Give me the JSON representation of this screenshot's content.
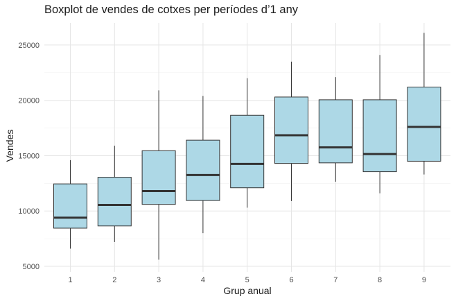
{
  "chart_data": {
    "type": "boxplot",
    "title": "Boxplot de vendes de cotxes per períodes d’1 any",
    "xlabel": "Grup anual",
    "ylabel": "Vendes",
    "categories": [
      "1",
      "2",
      "3",
      "4",
      "5",
      "6",
      "7",
      "8",
      "9"
    ],
    "yticks": [
      5000,
      10000,
      15000,
      20000,
      25000
    ],
    "ylim": [
      4500,
      27000
    ],
    "grid": true,
    "box_color": "#add8e6",
    "line_color": "#333333",
    "boxes": [
      {
        "group": "1",
        "min": 6600,
        "q1": 8450,
        "median": 9400,
        "q3": 12450,
        "max": 14600
      },
      {
        "group": "2",
        "min": 7200,
        "q1": 8650,
        "median": 10550,
        "q3": 13050,
        "max": 15900
      },
      {
        "group": "3",
        "min": 5600,
        "q1": 10600,
        "median": 11800,
        "q3": 15450,
        "max": 20900
      },
      {
        "group": "4",
        "min": 8000,
        "q1": 10950,
        "median": 13250,
        "q3": 16400,
        "max": 20400
      },
      {
        "group": "5",
        "min": 10300,
        "q1": 12100,
        "median": 14250,
        "q3": 18650,
        "max": 22000
      },
      {
        "group": "6",
        "min": 10900,
        "q1": 14300,
        "median": 16850,
        "q3": 20300,
        "max": 23500
      },
      {
        "group": "7",
        "min": 12650,
        "q1": 14350,
        "median": 15750,
        "q3": 20050,
        "max": 22100
      },
      {
        "group": "8",
        "min": 11600,
        "q1": 13550,
        "median": 15150,
        "q3": 20050,
        "max": 24100
      },
      {
        "group": "9",
        "min": 13300,
        "q1": 14500,
        "median": 17600,
        "q3": 21200,
        "max": 26100
      }
    ]
  }
}
